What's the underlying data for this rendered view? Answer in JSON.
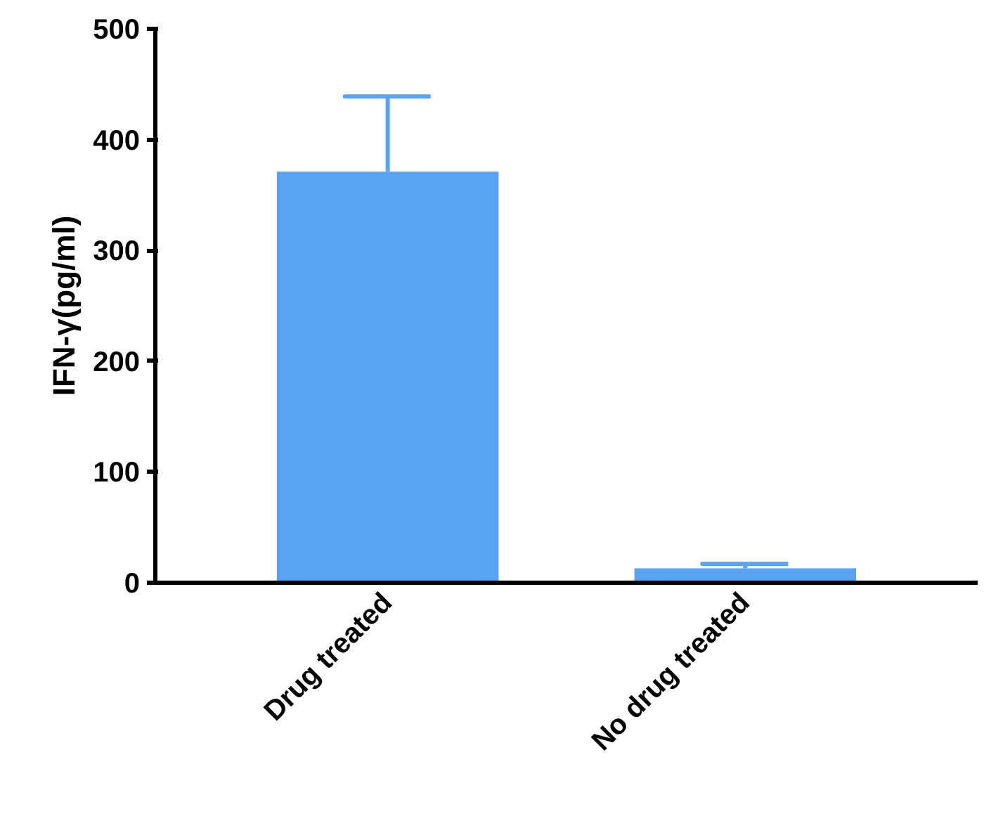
{
  "chart_data": {
    "type": "bar",
    "ylabel": "IFN-γ(pg/ml)",
    "categories": [
      "Drug treated",
      "No drug treated"
    ],
    "values": [
      371,
      13
    ],
    "errors": [
      [
        371,
        439
      ],
      [
        13,
        17
      ]
    ],
    "color": "#5aa2f2",
    "ylim": [
      0,
      500
    ],
    "yticks": [
      0,
      100,
      200,
      300,
      400,
      500
    ],
    "grid": false
  }
}
